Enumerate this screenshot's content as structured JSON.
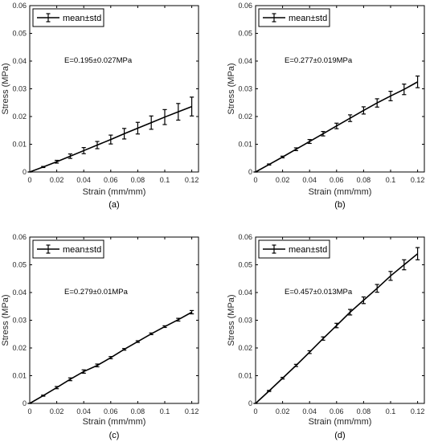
{
  "chart_data": [
    {
      "type": "line",
      "panel_label": "(a)",
      "xlabel": "Strain (mm/mm)",
      "ylabel": "Stress (MPa)",
      "xlim": [
        0,
        0.125
      ],
      "ylim": [
        0,
        0.06
      ],
      "x_ticks": [
        "0",
        "0.02",
        "0.04",
        "0.06",
        "0.08",
        "0.1",
        "0.12"
      ],
      "y_ticks": [
        "0",
        "0.01",
        "0.02",
        "0.03",
        "0.04",
        "0.05",
        "0.06"
      ],
      "legend": {
        "label": "mean±std",
        "position": "top-left"
      },
      "annotation": "E=0.195±0.027MPa",
      "series": [
        {
          "name": "mean±std",
          "x": [
            0,
            0.01,
            0.02,
            0.03,
            0.04,
            0.05,
            0.06,
            0.07,
            0.08,
            0.09,
            0.1,
            0.11,
            0.12
          ],
          "y": [
            0,
            0.0018,
            0.0037,
            0.0057,
            0.0077,
            0.0097,
            0.0117,
            0.0138,
            0.0158,
            0.0178,
            0.0198,
            0.0217,
            0.0236
          ],
          "std": [
            0,
            0.0002,
            0.0005,
            0.0008,
            0.0011,
            0.0013,
            0.0016,
            0.0019,
            0.0021,
            0.0024,
            0.0027,
            0.003,
            0.0034
          ]
        }
      ]
    },
    {
      "type": "line",
      "panel_label": "(b)",
      "xlabel": "Strain (mm/mm)",
      "ylabel": "Stress (MPa)",
      "xlim": [
        0,
        0.125
      ],
      "ylim": [
        0,
        0.06
      ],
      "x_ticks": [
        "0",
        "0.02",
        "0.04",
        "0.06",
        "0.08",
        "0.1",
        "0.12"
      ],
      "y_ticks": [
        "0",
        "0.01",
        "0.02",
        "0.03",
        "0.04",
        "0.05",
        "0.06"
      ],
      "legend": {
        "label": "mean±std",
        "position": "top-left"
      },
      "annotation": "E=0.277±0.019MPa",
      "series": [
        {
          "name": "mean±std",
          "x": [
            0,
            0.01,
            0.02,
            0.03,
            0.04,
            0.05,
            0.06,
            0.07,
            0.08,
            0.09,
            0.1,
            0.11,
            0.12
          ],
          "y": [
            0,
            0.0027,
            0.0054,
            0.0082,
            0.011,
            0.0138,
            0.0166,
            0.0194,
            0.0222,
            0.0249,
            0.0274,
            0.0298,
            0.0325
          ],
          "std": [
            0,
            0.0002,
            0.0003,
            0.0005,
            0.0007,
            0.0008,
            0.001,
            0.0012,
            0.0013,
            0.0015,
            0.0017,
            0.0019,
            0.0021
          ]
        }
      ]
    },
    {
      "type": "line",
      "panel_label": "(c)",
      "xlabel": "Strain (mm/mm)",
      "ylabel": "Stress (MPa)",
      "xlim": [
        0,
        0.125
      ],
      "ylim": [
        0,
        0.06
      ],
      "x_ticks": [
        "0",
        "0.02",
        "0.04",
        "0.06",
        "0.08",
        "0.1",
        "0.12"
      ],
      "y_ticks": [
        "0",
        "0.01",
        "0.02",
        "0.03",
        "0.04",
        "0.05",
        "0.06"
      ],
      "legend": {
        "label": "mean±std",
        "position": "top-left"
      },
      "annotation": "E=0.279±0.01MPa",
      "series": [
        {
          "name": "mean±std",
          "x": [
            0,
            0.01,
            0.02,
            0.03,
            0.04,
            0.05,
            0.06,
            0.07,
            0.08,
            0.09,
            0.1,
            0.11,
            0.12
          ],
          "y": [
            0,
            0.0028,
            0.0057,
            0.0087,
            0.0115,
            0.0137,
            0.0165,
            0.0195,
            0.0223,
            0.0251,
            0.0277,
            0.0302,
            0.0329
          ],
          "std": [
            0,
            0.0002,
            0.0004,
            0.0005,
            0.0006,
            0.0005,
            0.0004,
            0.0003,
            0.0003,
            0.0003,
            0.0003,
            0.0005,
            0.0006
          ]
        }
      ]
    },
    {
      "type": "line",
      "panel_label": "(d)",
      "xlabel": "Strain (mm/mm)",
      "ylabel": "Stress (MPa)",
      "xlim": [
        0,
        0.125
      ],
      "ylim": [
        0,
        0.06
      ],
      "x_ticks": [
        "0",
        "0.02",
        "0.04",
        "0.06",
        "0.08",
        "0.1",
        "0.12"
      ],
      "y_ticks": [
        "0",
        "0.01",
        "0.02",
        "0.03",
        "0.04",
        "0.05",
        "0.06"
      ],
      "legend": {
        "label": "mean±std",
        "position": "top-left"
      },
      "annotation": "E=0.457±0.013MPa",
      "series": [
        {
          "name": "mean±std",
          "x": [
            0,
            0.01,
            0.02,
            0.03,
            0.04,
            0.05,
            0.06,
            0.07,
            0.08,
            0.09,
            0.1,
            0.11,
            0.12
          ],
          "y": [
            0,
            0.0045,
            0.0091,
            0.0137,
            0.0185,
            0.0234,
            0.0281,
            0.0329,
            0.0372,
            0.0415,
            0.046,
            0.05,
            0.054
          ],
          "std": [
            0,
            0.0002,
            0.0003,
            0.0004,
            0.0005,
            0.0006,
            0.0008,
            0.001,
            0.0012,
            0.0014,
            0.0016,
            0.0018,
            0.0022
          ]
        }
      ]
    }
  ]
}
